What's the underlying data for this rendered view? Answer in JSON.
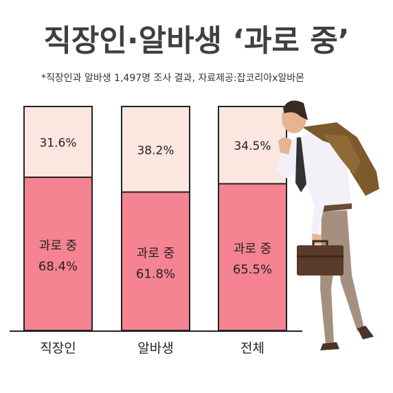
{
  "title": "직장인·알바생 ‘과로 중’",
  "subtitle": "*직장인과 알바생 1,497명 조사 결과, 자료제공:잡코리아x알바몬",
  "colors": {
    "overwork": "#f58392",
    "other": "#fbe6e0",
    "outline": "#222222",
    "title": "#3f3f3f"
  },
  "chart_data": {
    "type": "bar",
    "stacked": true,
    "percent": true,
    "categories": [
      "직장인",
      "알바생",
      "전체"
    ],
    "ylim": [
      0,
      100
    ],
    "series": [
      {
        "name": "과로 중",
        "values": [
          68.4,
          61.8,
          65.5
        ],
        "labels": [
          "68.4%",
          "61.8%",
          "65.5%"
        ]
      },
      {
        "name": "",
        "values": [
          31.6,
          38.2,
          34.5
        ],
        "labels": [
          "31.6%",
          "38.2%",
          "34.5%"
        ]
      }
    ]
  }
}
